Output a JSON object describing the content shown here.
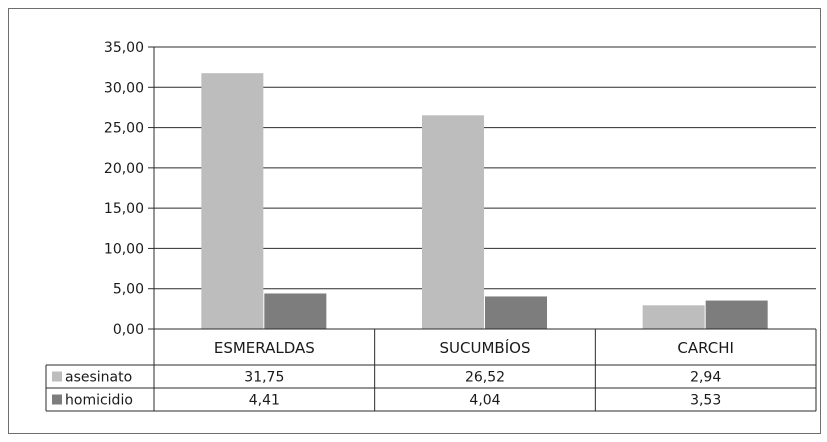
{
  "chart_data": {
    "type": "bar",
    "categories": [
      "ESMERALDAS",
      "SUCUMBÍOS",
      "CARCHI"
    ],
    "series": [
      {
        "name": "asesinato",
        "values": [
          31.75,
          26.52,
          2.94
        ],
        "labels": [
          "31,75",
          "26,52",
          "2,94"
        ],
        "color": "#bdbdbd"
      },
      {
        "name": "homicidio",
        "values": [
          4.41,
          4.04,
          3.53
        ],
        "labels": [
          "4,41",
          "4,04",
          "3,53"
        ],
        "color": "#7d7d7d"
      }
    ],
    "ylim": [
      0,
      35
    ],
    "yticks": [
      0,
      5,
      10,
      15,
      20,
      25,
      30,
      35
    ],
    "ytick_labels": [
      "0,00",
      "5,00",
      "10,00",
      "15,00",
      "20,00",
      "25,00",
      "30,00",
      "35,00"
    ],
    "grid": true,
    "legend": "data-table",
    "title": "",
    "xlabel": "",
    "ylabel": ""
  }
}
